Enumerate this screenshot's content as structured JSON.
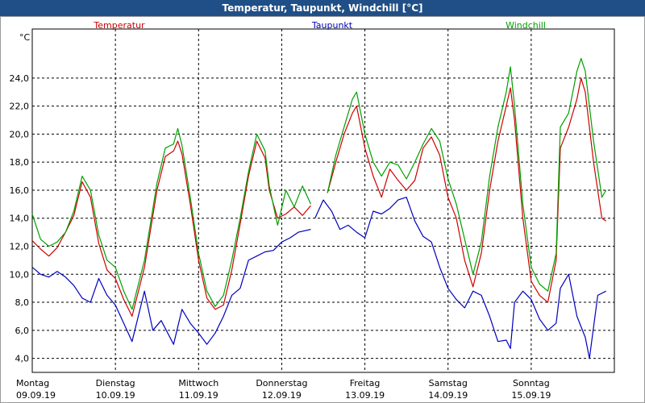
{
  "window": {
    "title": "Temperatur, Taupunkt, Windchill [°C]"
  },
  "chart_data": {
    "type": "line",
    "title": "Temperatur, Taupunkt, Windchill [°C]",
    "ylabel": "°C",
    "xlabel": "",
    "ylim": [
      3.0,
      27.5
    ],
    "xlim": [
      0,
      7
    ],
    "grid": true,
    "yticks": [
      "4,0",
      "6,0",
      "8,0",
      "10,0",
      "12,0",
      "14,0",
      "16,0",
      "18,0",
      "20,0",
      "22,0",
      "24,0"
    ],
    "ytick_values": [
      4,
      6,
      8,
      10,
      12,
      14,
      16,
      18,
      20,
      22,
      24
    ],
    "x_days": [
      {
        "day": "Montag",
        "date": "09.09.19"
      },
      {
        "day": "Dienstag",
        "date": "10.09.19"
      },
      {
        "day": "Mittwoch",
        "date": "11.09.19"
      },
      {
        "day": "Donnerstag",
        "date": "12.09.19"
      },
      {
        "day": "Freitag",
        "date": "13.09.19"
      },
      {
        "day": "Samstag",
        "date": "14.09.19"
      },
      {
        "day": "Sonntag",
        "date": "15.09.19"
      }
    ],
    "series": [
      {
        "name": "Temperatur",
        "color": "#d00000",
        "points": [
          [
            0.0,
            12.4
          ],
          [
            0.1,
            11.8
          ],
          [
            0.2,
            11.3
          ],
          [
            0.3,
            11.9
          ],
          [
            0.4,
            13.0
          ],
          [
            0.5,
            14.2
          ],
          [
            0.6,
            16.6
          ],
          [
            0.7,
            15.5
          ],
          [
            0.8,
            12.2
          ],
          [
            0.9,
            10.3
          ],
          [
            1.0,
            9.7
          ],
          [
            1.1,
            8.2
          ],
          [
            1.2,
            7.0
          ],
          [
            1.35,
            10.5
          ],
          [
            1.5,
            16.0
          ],
          [
            1.6,
            18.4
          ],
          [
            1.7,
            18.8
          ],
          [
            1.75,
            19.5
          ],
          [
            1.8,
            18.6
          ],
          [
            1.9,
            15.0
          ],
          [
            2.0,
            11.0
          ],
          [
            2.1,
            8.3
          ],
          [
            2.2,
            7.5
          ],
          [
            2.3,
            7.8
          ],
          [
            2.4,
            10.3
          ],
          [
            2.5,
            13.6
          ],
          [
            2.6,
            17.0
          ],
          [
            2.7,
            19.5
          ],
          [
            2.8,
            18.3
          ],
          [
            2.85,
            16.0
          ],
          [
            2.95,
            14.0
          ],
          [
            3.05,
            14.3
          ],
          [
            3.15,
            14.8
          ],
          [
            3.25,
            14.2
          ],
          [
            3.35,
            14.9
          ]
        ],
        "points2": [
          [
            3.55,
            15.8
          ],
          [
            3.65,
            18.0
          ],
          [
            3.75,
            20.0
          ],
          [
            3.85,
            21.5
          ],
          [
            3.9,
            22.0
          ],
          [
            4.0,
            19.0
          ],
          [
            4.1,
            17.0
          ],
          [
            4.2,
            15.5
          ],
          [
            4.3,
            17.5
          ],
          [
            4.4,
            16.7
          ],
          [
            4.5,
            16.0
          ],
          [
            4.6,
            16.7
          ],
          [
            4.7,
            19.0
          ],
          [
            4.8,
            19.8
          ],
          [
            4.9,
            18.5
          ],
          [
            5.0,
            15.5
          ],
          [
            5.1,
            14.0
          ],
          [
            5.2,
            11.0
          ],
          [
            5.3,
            9.1
          ],
          [
            5.4,
            11.5
          ],
          [
            5.5,
            16.0
          ],
          [
            5.6,
            19.5
          ],
          [
            5.7,
            22.0
          ],
          [
            5.75,
            23.3
          ],
          [
            5.8,
            21.0
          ],
          [
            5.9,
            14.0
          ],
          [
            6.0,
            9.5
          ],
          [
            6.1,
            8.5
          ],
          [
            6.2,
            8.0
          ],
          [
            6.3,
            11.0
          ],
          [
            6.35,
            19.0
          ],
          [
            6.45,
            20.5
          ],
          [
            6.55,
            22.5
          ],
          [
            6.6,
            24.0
          ],
          [
            6.65,
            23.0
          ],
          [
            6.75,
            18.0
          ],
          [
            6.85,
            14.0
          ],
          [
            6.9,
            13.8
          ]
        ]
      },
      {
        "name": "Taupunkt",
        "color": "#0000c0",
        "points": [
          [
            0.0,
            10.5
          ],
          [
            0.1,
            10.0
          ],
          [
            0.2,
            9.8
          ],
          [
            0.3,
            10.2
          ],
          [
            0.4,
            9.8
          ],
          [
            0.5,
            9.2
          ],
          [
            0.6,
            8.3
          ],
          [
            0.7,
            8.0
          ],
          [
            0.8,
            9.7
          ],
          [
            0.9,
            8.5
          ],
          [
            1.0,
            7.8
          ],
          [
            1.1,
            6.5
          ],
          [
            1.2,
            5.2
          ],
          [
            1.35,
            8.8
          ],
          [
            1.45,
            6.0
          ],
          [
            1.55,
            6.7
          ],
          [
            1.7,
            5.0
          ],
          [
            1.8,
            7.5
          ],
          [
            1.9,
            6.5
          ],
          [
            2.0,
            5.8
          ],
          [
            2.1,
            5.0
          ],
          [
            2.2,
            5.8
          ],
          [
            2.3,
            7.0
          ],
          [
            2.4,
            8.5
          ],
          [
            2.5,
            9.0
          ],
          [
            2.6,
            11.0
          ],
          [
            2.7,
            11.3
          ],
          [
            2.8,
            11.6
          ],
          [
            2.9,
            11.7
          ],
          [
            3.0,
            12.3
          ],
          [
            3.1,
            12.6
          ],
          [
            3.2,
            13.0
          ],
          [
            3.35,
            13.2
          ]
        ],
        "points2": [
          [
            3.4,
            14.0
          ],
          [
            3.5,
            15.3
          ],
          [
            3.6,
            14.5
          ],
          [
            3.7,
            13.2
          ],
          [
            3.8,
            13.5
          ],
          [
            3.9,
            13.0
          ],
          [
            4.0,
            12.6
          ],
          [
            4.1,
            14.5
          ],
          [
            4.2,
            14.3
          ],
          [
            4.3,
            14.7
          ],
          [
            4.4,
            15.3
          ],
          [
            4.5,
            15.5
          ],
          [
            4.6,
            13.8
          ],
          [
            4.7,
            12.7
          ],
          [
            4.8,
            12.3
          ],
          [
            4.9,
            10.5
          ],
          [
            5.0,
            9.0
          ],
          [
            5.1,
            8.2
          ],
          [
            5.2,
            7.6
          ],
          [
            5.3,
            8.8
          ],
          [
            5.4,
            8.5
          ],
          [
            5.5,
            7.0
          ],
          [
            5.6,
            5.2
          ],
          [
            5.7,
            5.3
          ],
          [
            5.75,
            4.7
          ],
          [
            5.8,
            8.0
          ],
          [
            5.9,
            8.8
          ],
          [
            6.0,
            8.2
          ],
          [
            6.1,
            6.8
          ],
          [
            6.2,
            6.0
          ],
          [
            6.3,
            6.5
          ],
          [
            6.35,
            9.0
          ],
          [
            6.45,
            10.0
          ],
          [
            6.55,
            7.0
          ],
          [
            6.65,
            5.5
          ],
          [
            6.7,
            4.0
          ],
          [
            6.8,
            8.5
          ],
          [
            6.9,
            8.8
          ]
        ]
      },
      {
        "name": "Windchill",
        "color": "#00a000",
        "points": [
          [
            0.0,
            14.3
          ],
          [
            0.1,
            12.5
          ],
          [
            0.2,
            12.0
          ],
          [
            0.3,
            12.3
          ],
          [
            0.4,
            13.0
          ],
          [
            0.5,
            14.5
          ],
          [
            0.6,
            17.0
          ],
          [
            0.7,
            16.0
          ],
          [
            0.8,
            12.8
          ],
          [
            0.9,
            11.0
          ],
          [
            1.0,
            10.5
          ],
          [
            1.1,
            8.8
          ],
          [
            1.2,
            7.5
          ],
          [
            1.35,
            11.0
          ],
          [
            1.5,
            16.5
          ],
          [
            1.6,
            19.0
          ],
          [
            1.7,
            19.3
          ],
          [
            1.75,
            20.4
          ],
          [
            1.8,
            19.2
          ],
          [
            1.9,
            15.5
          ],
          [
            2.0,
            11.5
          ],
          [
            2.1,
            8.8
          ],
          [
            2.2,
            7.7
          ],
          [
            2.3,
            8.5
          ],
          [
            2.4,
            11.0
          ],
          [
            2.5,
            14.0
          ],
          [
            2.6,
            17.3
          ],
          [
            2.7,
            20.0
          ],
          [
            2.8,
            18.8
          ],
          [
            2.85,
            16.3
          ],
          [
            2.95,
            13.5
          ],
          [
            3.05,
            16.0
          ],
          [
            3.15,
            14.8
          ],
          [
            3.25,
            16.3
          ],
          [
            3.35,
            15.0
          ]
        ],
        "points2": [
          [
            3.55,
            15.8
          ],
          [
            3.65,
            18.5
          ],
          [
            3.75,
            20.5
          ],
          [
            3.85,
            22.5
          ],
          [
            3.9,
            23.0
          ],
          [
            4.0,
            20.0
          ],
          [
            4.1,
            18.0
          ],
          [
            4.2,
            17.0
          ],
          [
            4.3,
            18.0
          ],
          [
            4.4,
            17.8
          ],
          [
            4.5,
            16.8
          ],
          [
            4.6,
            18.0
          ],
          [
            4.7,
            19.3
          ],
          [
            4.8,
            20.4
          ],
          [
            4.9,
            19.5
          ],
          [
            5.0,
            16.8
          ],
          [
            5.1,
            15.0
          ],
          [
            5.2,
            12.5
          ],
          [
            5.3,
            10.0
          ],
          [
            5.4,
            12.3
          ],
          [
            5.5,
            17.0
          ],
          [
            5.6,
            20.5
          ],
          [
            5.7,
            23.0
          ],
          [
            5.75,
            24.8
          ],
          [
            5.8,
            22.0
          ],
          [
            5.9,
            15.0
          ],
          [
            6.0,
            10.5
          ],
          [
            6.1,
            9.3
          ],
          [
            6.2,
            8.8
          ],
          [
            6.3,
            11.5
          ],
          [
            6.35,
            20.5
          ],
          [
            6.45,
            21.5
          ],
          [
            6.55,
            24.5
          ],
          [
            6.6,
            25.4
          ],
          [
            6.65,
            24.5
          ],
          [
            6.75,
            19.5
          ],
          [
            6.85,
            15.5
          ],
          [
            6.9,
            16.0
          ]
        ]
      }
    ]
  }
}
